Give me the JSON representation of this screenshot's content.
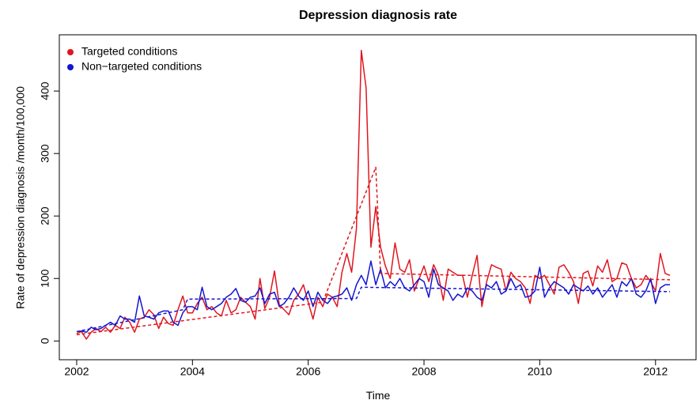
{
  "chart_data": {
    "type": "line",
    "title": "Depression diagnosis rate",
    "x_label": "Time",
    "y_label": "Rate of depression diagnosis /month/100,000",
    "xlim": [
      2001.7,
      2012.7
    ],
    "ylim": [
      -30,
      490
    ],
    "xticks": [
      2002,
      2004,
      2006,
      2008,
      2010,
      2012
    ],
    "yticks": [
      0,
      100,
      200,
      300,
      400
    ],
    "grid": false,
    "legend": "top-left",
    "x": [
      2002.0,
      2002.083,
      2002.167,
      2002.25,
      2002.333,
      2002.417,
      2002.5,
      2002.583,
      2002.667,
      2002.75,
      2002.833,
      2002.917,
      2003.0,
      2003.083,
      2003.167,
      2003.25,
      2003.333,
      2003.417,
      2003.5,
      2003.583,
      2003.667,
      2003.75,
      2003.833,
      2003.917,
      2004.0,
      2004.083,
      2004.167,
      2004.25,
      2004.333,
      2004.417,
      2004.5,
      2004.583,
      2004.667,
      2004.75,
      2004.833,
      2004.917,
      2005.0,
      2005.083,
      2005.167,
      2005.25,
      2005.333,
      2005.417,
      2005.5,
      2005.583,
      2005.667,
      2005.75,
      2005.833,
      2005.917,
      2006.0,
      2006.083,
      2006.167,
      2006.25,
      2006.333,
      2006.417,
      2006.5,
      2006.583,
      2006.667,
      2006.75,
      2006.833,
      2006.917,
      2007.0,
      2007.083,
      2007.167,
      2007.25,
      2007.333,
      2007.417,
      2007.5,
      2007.583,
      2007.667,
      2007.75,
      2007.833,
      2007.917,
      2008.0,
      2008.083,
      2008.167,
      2008.25,
      2008.333,
      2008.417,
      2008.5,
      2008.583,
      2008.667,
      2008.75,
      2008.833,
      2008.917,
      2009.0,
      2009.083,
      2009.167,
      2009.25,
      2009.333,
      2009.417,
      2009.5,
      2009.583,
      2009.667,
      2009.75,
      2009.833,
      2009.917,
      2010.0,
      2010.083,
      2010.167,
      2010.25,
      2010.333,
      2010.417,
      2010.5,
      2010.583,
      2010.667,
      2010.75,
      2010.833,
      2010.917,
      2011.0,
      2011.083,
      2011.167,
      2011.25,
      2011.333,
      2011.417,
      2011.5,
      2011.583,
      2011.667,
      2011.75,
      2011.833,
      2011.917,
      2012.0,
      2012.083,
      2012.167,
      2012.25
    ],
    "series": [
      {
        "name": "Targeted conditions",
        "color": "#e0161f",
        "values": [
          12,
          15,
          3,
          14,
          20,
          15,
          22,
          14,
          25,
          20,
          38,
          30,
          14,
          35,
          38,
          50,
          42,
          20,
          38,
          28,
          25,
          50,
          72,
          45,
          45,
          60,
          70,
          50,
          55,
          45,
          40,
          65,
          45,
          50,
          70,
          62,
          55,
          35,
          100,
          52,
          70,
          112,
          58,
          50,
          42,
          65,
          75,
          90,
          62,
          35,
          70,
          55,
          75,
          70,
          55,
          110,
          140,
          110,
          180,
          465,
          405,
          150,
          215,
          150,
          120,
          100,
          157,
          115,
          110,
          130,
          80,
          100,
          120,
          95,
          122,
          105,
          65,
          115,
          110,
          105,
          105,
          70,
          105,
          137,
          55,
          95,
          122,
          118,
          115,
          80,
          110,
          100,
          95,
          85,
          60,
          105,
          100,
          105,
          90,
          75,
          118,
          122,
          110,
          95,
          60,
          108,
          112,
          88,
          120,
          110,
          130,
          95,
          100,
          125,
          122,
          100,
          85,
          90,
          105,
          95,
          80,
          140,
          108,
          105
        ]
      },
      {
        "name": "Non−targeted conditions",
        "color": "#1515d0",
        "values": [
          15,
          16,
          14,
          22,
          18,
          20,
          25,
          30,
          25,
          40,
          35,
          35,
          30,
          72,
          40,
          38,
          35,
          45,
          48,
          48,
          30,
          25,
          45,
          55,
          55,
          50,
          86,
          55,
          50,
          55,
          60,
          70,
          75,
          84,
          65,
          62,
          70,
          72,
          85,
          60,
          75,
          78,
          55,
          60,
          70,
          85,
          72,
          65,
          80,
          55,
          78,
          65,
          60,
          70,
          72,
          75,
          85,
          65,
          90,
          105,
          90,
          128,
          90,
          115,
          85,
          95,
          88,
          100,
          85,
          80,
          90,
          100,
          95,
          70,
          115,
          90,
          85,
          80,
          65,
          75,
          70,
          85,
          80,
          70,
          65,
          90,
          85,
          95,
          75,
          80,
          100,
          85,
          90,
          70,
          72,
          80,
          118,
          70,
          85,
          95,
          90,
          85,
          75,
          90,
          85,
          80,
          88,
          75,
          85,
          70,
          80,
          90,
          70,
          95,
          88,
          100,
          75,
          70,
          80,
          100,
          60,
          85,
          90,
          90
        ]
      }
    ],
    "trends": [
      {
        "color": "#e0161f",
        "x": [
          2002.0,
          2006.25,
          2007.167,
          2007.25,
          2012.25
        ],
        "values": [
          10,
          62,
          278,
          108,
          98
        ]
      },
      {
        "color": "#1515d0",
        "x": [
          2002.0,
          2003.833,
          2003.917,
          2006.833,
          2006.917,
          2012.25
        ],
        "values": [
          15,
          50,
          67,
          68,
          86,
          79
        ]
      }
    ]
  }
}
